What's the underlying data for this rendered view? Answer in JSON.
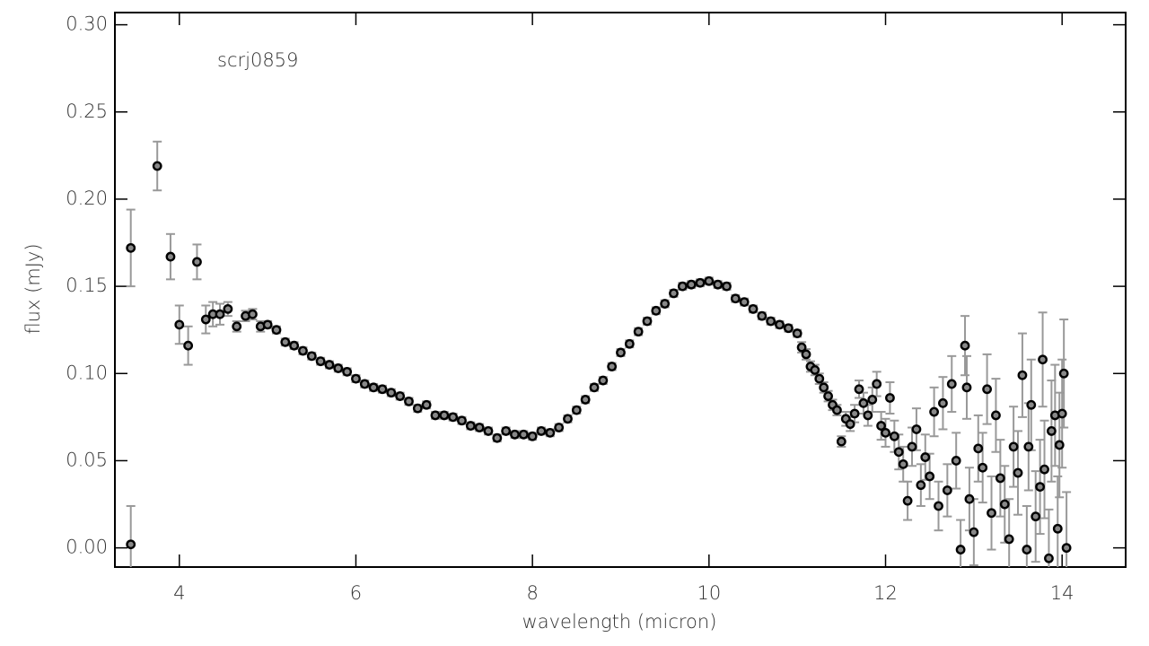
{
  "chart_data": {
    "type": "scatter",
    "annotation": "scrj0859",
    "x_label": "wavelength (micron)",
    "y_label": "flux (mJy)",
    "color": "#000000",
    "error_color": "#999999",
    "xlim": [
      3.27,
      14.72
    ],
    "ylim": [
      -0.011,
      0.307
    ],
    "xticks": [
      4,
      6,
      8,
      10,
      12,
      14
    ],
    "yticks": [
      {
        "value": 0,
        "label": "0.00"
      },
      {
        "value": 0.05,
        "label": "0.05"
      },
      {
        "value": 0.1,
        "label": "0.10"
      },
      {
        "value": 0.15,
        "label": "0.15"
      },
      {
        "value": 0.2,
        "label": "0.20"
      },
      {
        "value": 0.25,
        "label": "0.25"
      },
      {
        "value": 0.3,
        "label": "0.30"
      }
    ],
    "x": [
      3.45,
      3.45,
      3.75,
      3.9,
      4.0,
      4.1,
      4.2,
      4.3,
      4.38,
      4.46,
      4.55,
      4.65,
      4.75,
      4.83,
      4.92,
      5.0,
      5.1,
      5.2,
      5.3,
      5.4,
      5.5,
      5.6,
      5.7,
      5.8,
      5.9,
      6.0,
      6.1,
      6.2,
      6.3,
      6.4,
      6.5,
      6.6,
      6.7,
      6.8,
      6.9,
      7.0,
      7.1,
      7.2,
      7.3,
      7.4,
      7.5,
      7.6,
      7.7,
      7.8,
      7.9,
      8.0,
      8.1,
      8.2,
      8.3,
      8.4,
      8.5,
      8.6,
      8.7,
      8.8,
      8.9,
      9.0,
      9.1,
      9.2,
      9.3,
      9.4,
      9.5,
      9.6,
      9.7,
      9.8,
      9.9,
      10.0,
      10.1,
      10.2,
      10.3,
      10.4,
      10.5,
      10.6,
      10.7,
      10.8,
      10.9,
      11.0,
      11.05,
      11.1,
      11.15,
      11.2,
      11.25,
      11.3,
      11.35,
      11.4,
      11.45,
      11.5,
      11.55,
      11.6,
      11.65,
      11.7,
      11.75,
      11.8,
      11.85,
      11.9,
      11.95,
      12.0,
      12.05,
      12.1,
      12.15,
      12.2,
      12.25,
      12.3,
      12.35,
      12.4,
      12.45,
      12.5,
      12.55,
      12.6,
      12.65,
      12.7,
      12.75,
      12.8,
      12.85,
      12.9,
      12.92,
      12.95,
      13.0,
      13.05,
      13.1,
      13.15,
      13.2,
      13.25,
      13.3,
      13.35,
      13.4,
      13.45,
      13.5,
      13.55,
      13.6,
      13.62,
      13.65,
      13.7,
      13.75,
      13.78,
      13.8,
      13.85,
      13.88,
      13.92,
      13.95,
      13.97,
      14.0,
      14.02,
      14.05
    ],
    "values": [
      0.172,
      0.002,
      0.219,
      0.167,
      0.128,
      0.116,
      0.164,
      0.131,
      0.134,
      0.134,
      0.137,
      0.127,
      0.133,
      0.134,
      0.127,
      0.128,
      0.125,
      0.118,
      0.116,
      0.113,
      0.11,
      0.107,
      0.105,
      0.103,
      0.101,
      0.097,
      0.094,
      0.092,
      0.091,
      0.089,
      0.087,
      0.084,
      0.08,
      0.082,
      0.076,
      0.076,
      0.075,
      0.073,
      0.07,
      0.069,
      0.067,
      0.063,
      0.067,
      0.065,
      0.065,
      0.064,
      0.067,
      0.066,
      0.069,
      0.074,
      0.079,
      0.085,
      0.092,
      0.096,
      0.104,
      0.112,
      0.117,
      0.124,
      0.13,
      0.136,
      0.14,
      0.146,
      0.15,
      0.151,
      0.152,
      0.153,
      0.151,
      0.15,
      0.143,
      0.141,
      0.137,
      0.133,
      0.13,
      0.128,
      0.126,
      0.123,
      0.115,
      0.111,
      0.104,
      0.102,
      0.097,
      0.092,
      0.087,
      0.082,
      0.079,
      0.061,
      0.074,
      0.071,
      0.077,
      0.091,
      0.083,
      0.076,
      0.085,
      0.094,
      0.07,
      0.066,
      0.086,
      0.064,
      0.055,
      0.048,
      0.027,
      0.058,
      0.068,
      0.036,
      0.052,
      0.041,
      0.078,
      0.024,
      0.083,
      0.033,
      0.094,
      0.05,
      -0.001,
      0.116,
      0.092,
      0.028,
      0.009,
      0.057,
      0.046,
      0.091,
      0.02,
      0.076,
      0.04,
      0.025,
      0.005,
      0.058,
      0.043,
      0.099,
      -0.001,
      0.058,
      0.082,
      0.018,
      0.035,
      0.108,
      0.045,
      -0.006,
      0.067,
      0.076,
      0.011,
      0.059,
      0.077,
      0.1,
      0.0
    ],
    "errors": [
      0.022,
      0.022,
      0.014,
      0.013,
      0.011,
      0.011,
      0.01,
      0.008,
      0.007,
      0.006,
      0.004,
      0.003,
      0.003,
      0.003,
      0.003,
      0.002,
      0.002,
      0.002,
      0.002,
      0.002,
      0.002,
      0.002,
      0.002,
      0.002,
      0.002,
      0.002,
      0.002,
      0.002,
      0.002,
      0.002,
      0.002,
      0.002,
      0.002,
      0.002,
      0.002,
      0.002,
      0.002,
      0.002,
      0.002,
      0.002,
      0.002,
      0.002,
      0.002,
      0.002,
      0.002,
      0.002,
      0.002,
      0.002,
      0.002,
      0.002,
      0.002,
      0.002,
      0.002,
      0.002,
      0.002,
      0.002,
      0.002,
      0.002,
      0.002,
      0.002,
      0.002,
      0.002,
      0.002,
      0.002,
      0.002,
      0.002,
      0.002,
      0.002,
      0.002,
      0.002,
      0.002,
      0.002,
      0.002,
      0.002,
      0.002,
      0.002,
      0.003,
      0.003,
      0.003,
      0.003,
      0.003,
      0.003,
      0.003,
      0.003,
      0.003,
      0.003,
      0.004,
      0.004,
      0.005,
      0.005,
      0.006,
      0.006,
      0.007,
      0.007,
      0.008,
      0.008,
      0.009,
      0.009,
      0.01,
      0.01,
      0.011,
      0.011,
      0.012,
      0.012,
      0.013,
      0.013,
      0.014,
      0.014,
      0.015,
      0.015,
      0.016,
      0.016,
      0.017,
      0.017,
      0.018,
      0.018,
      0.019,
      0.019,
      0.02,
      0.02,
      0.021,
      0.021,
      0.022,
      0.022,
      0.023,
      0.023,
      0.024,
      0.024,
      0.025,
      0.025,
      0.026,
      0.026,
      0.027,
      0.027,
      0.028,
      0.028,
      0.029,
      0.029,
      0.03,
      0.03,
      0.031,
      0.031,
      0.032
    ]
  }
}
